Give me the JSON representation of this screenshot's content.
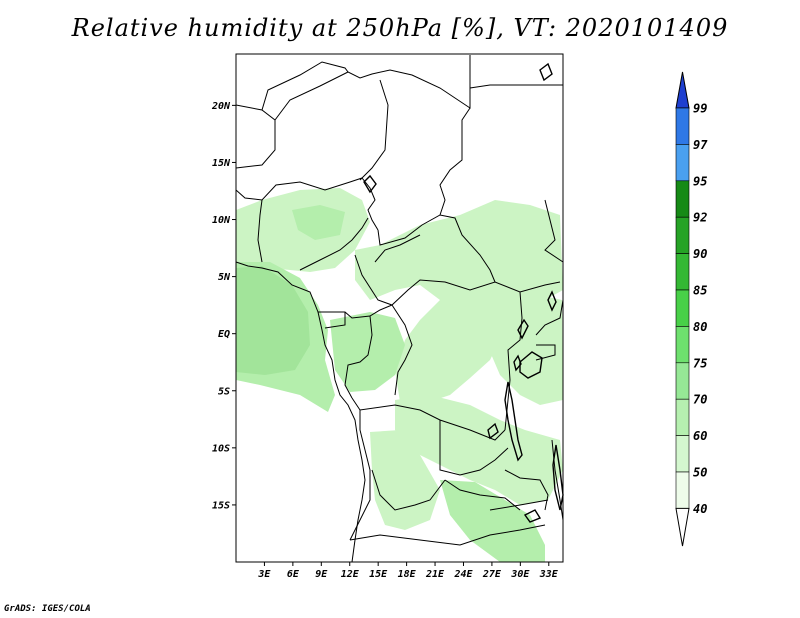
{
  "title": "Relative humidity at 250hPa [%], VT: 2020101409",
  "credit": "GrADS: IGES/COLA",
  "map": {
    "lon_range": [
      0,
      34.5
    ],
    "lat_range": [
      -20,
      24.5
    ],
    "lat_ticks": [
      {
        "value": 20,
        "label": "20N"
      },
      {
        "value": 15,
        "label": "15N"
      },
      {
        "value": 10,
        "label": "10N"
      },
      {
        "value": 5,
        "label": "5N"
      },
      {
        "value": 0,
        "label": "EQ"
      },
      {
        "value": -5,
        "label": "5S"
      },
      {
        "value": -10,
        "label": "10S"
      },
      {
        "value": -15,
        "label": "15S"
      }
    ],
    "lon_ticks": [
      {
        "value": 3,
        "label": "3E"
      },
      {
        "value": 6,
        "label": "6E"
      },
      {
        "value": 9,
        "label": "9E"
      },
      {
        "value": 12,
        "label": "12E"
      },
      {
        "value": 15,
        "label": "15E"
      },
      {
        "value": 18,
        "label": "18E"
      },
      {
        "value": 21,
        "label": "21E"
      },
      {
        "value": 24,
        "label": "24E"
      },
      {
        "value": 27,
        "label": "27E"
      },
      {
        "value": 30,
        "label": "30E"
      },
      {
        "value": 33,
        "label": "33E"
      }
    ]
  },
  "colorbar": {
    "levels": [
      "99",
      "97",
      "95",
      "92",
      "90",
      "85",
      "80",
      "75",
      "70",
      "60",
      "50",
      "40"
    ],
    "colors": [
      "#1e3fd0",
      "#2f78e6",
      "#4aa0f0",
      "#168a16",
      "#26a326",
      "#34b834",
      "#48d048",
      "#6ee06e",
      "#96e896",
      "#b6f0b0",
      "#d4f7cf",
      "#eefcea",
      "#ffffff"
    ]
  },
  "colors": {
    "humid_light": "#ccf4c4",
    "humid_mid": "#b4eeac",
    "humid_deep": "#a2e49a"
  }
}
